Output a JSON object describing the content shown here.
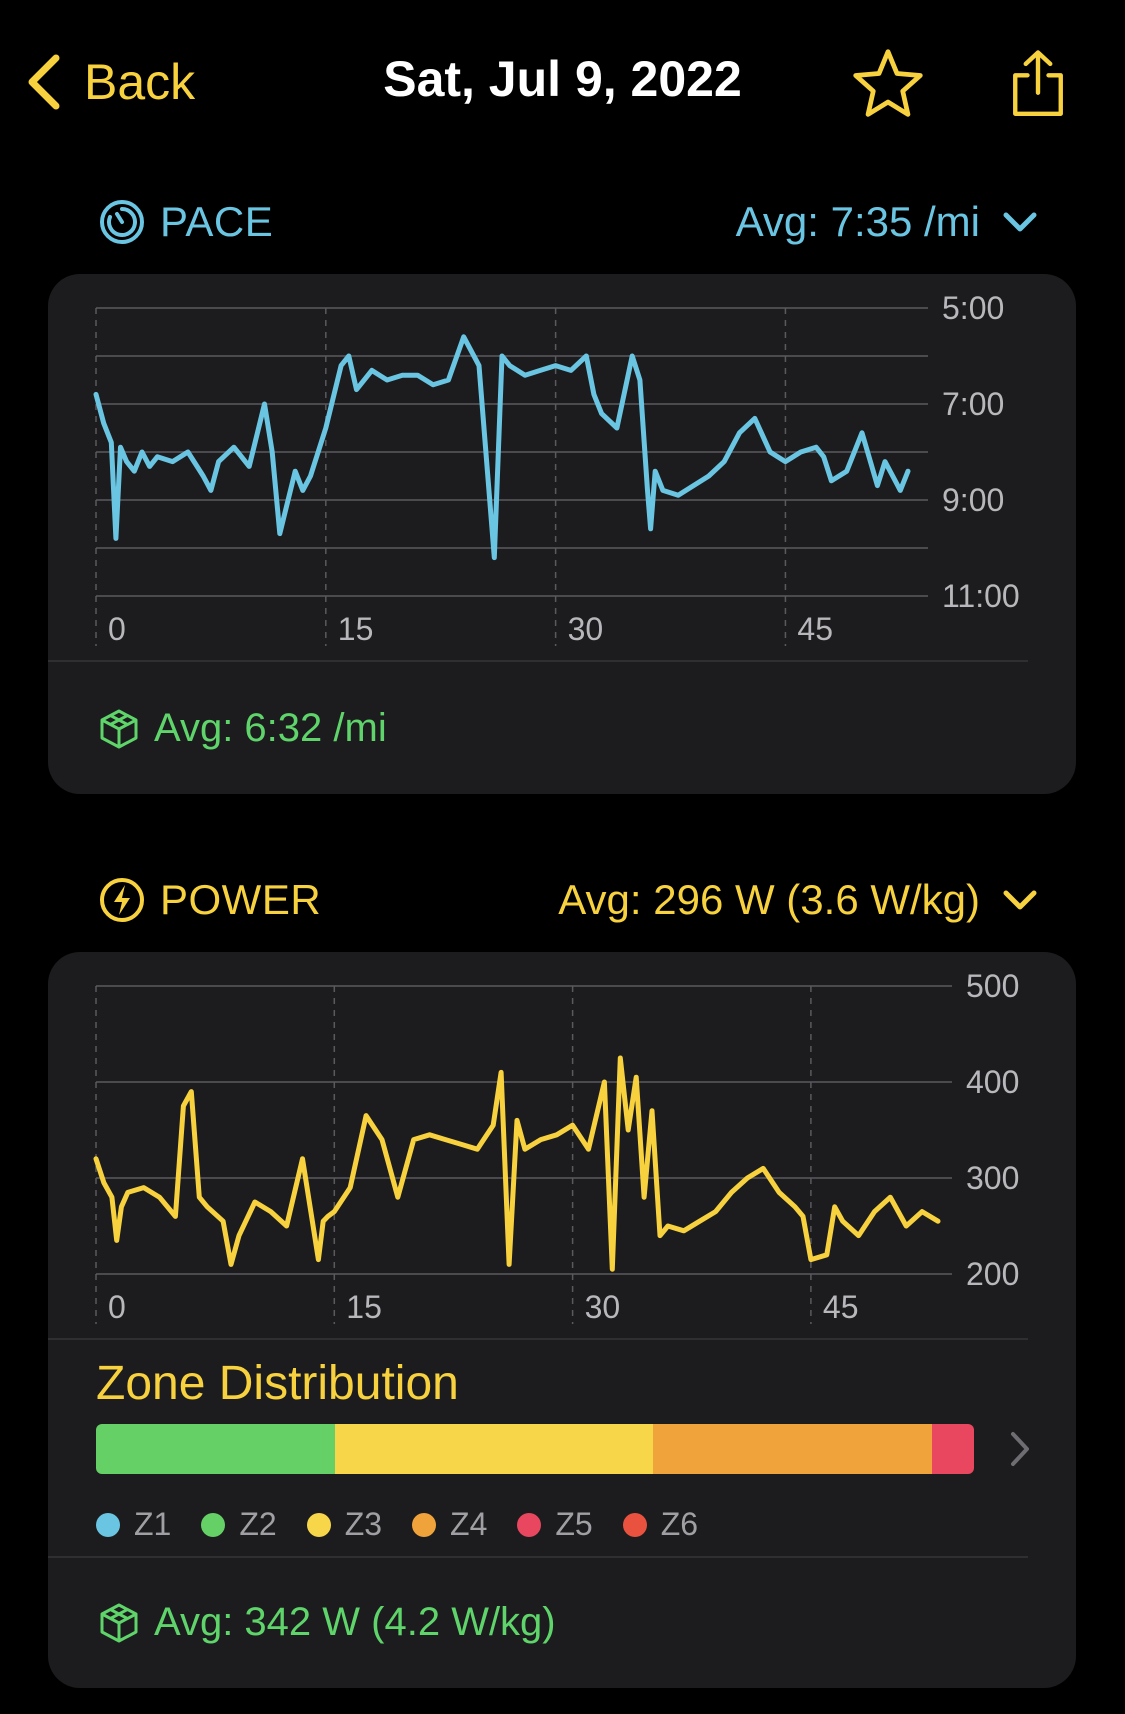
{
  "colors": {
    "accent": "#f7d23e",
    "pace": "#6ac5e2",
    "power": "#f7d23e",
    "footer_green": "#5ed46a",
    "card_bg": "#1c1c1e"
  },
  "header": {
    "back_label": "Back",
    "title": "Sat, Jul 9, 2022",
    "icons": [
      "chevron-left-icon",
      "star-icon",
      "share-icon"
    ]
  },
  "pace": {
    "label": "PACE",
    "avg_label": "Avg: 7:35 /mi",
    "footer_avg": "Avg: 6:32 /mi",
    "chart_data": {
      "type": "line",
      "y_tick_labels": [
        "5:00",
        "7:00",
        "9:00",
        "11:00"
      ],
      "x_tick_labels": [
        "0",
        "15",
        "30",
        "45"
      ],
      "y_inverted": true,
      "ylim": [
        5,
        11
      ],
      "xlim": [
        0,
        53
      ],
      "x": [
        0,
        0.5,
        1,
        1.3,
        1.6,
        2,
        2.5,
        3,
        3.5,
        4,
        5,
        6,
        7,
        7.5,
        8,
        9,
        10,
        11,
        11.5,
        12,
        13,
        13.5,
        14,
        15,
        16,
        16.5,
        17,
        18,
        19,
        20,
        21,
        22,
        23,
        24,
        25,
        26,
        26.5,
        27,
        27.5,
        28,
        29,
        30,
        31,
        32,
        32.5,
        33,
        34,
        35,
        35.5,
        36,
        36.2,
        36.5,
        37,
        38,
        39,
        40,
        41,
        42,
        43,
        44,
        45,
        46,
        47,
        47.5,
        48,
        49,
        50,
        51,
        51.5,
        52,
        52.5,
        53
      ],
      "series": [
        {
          "values": [
            6.8,
            7.4,
            7.8,
            9.8,
            7.9,
            8.2,
            8.4,
            8.0,
            8.3,
            8.1,
            8.2,
            8.0,
            8.5,
            8.8,
            8.2,
            7.9,
            8.3,
            7.0,
            8.0,
            9.7,
            8.4,
            8.8,
            8.5,
            7.5,
            6.2,
            6.0,
            6.7,
            6.3,
            6.5,
            6.4,
            6.4,
            6.6,
            6.5,
            5.6,
            6.2,
            10.2,
            6.0,
            6.2,
            6.3,
            6.4,
            6.3,
            6.2,
            6.3,
            6.0,
            6.8,
            7.2,
            7.5,
            6.0,
            6.5,
            8.8,
            9.6,
            8.4,
            8.8,
            8.9,
            8.7,
            8.5,
            8.2,
            7.6,
            7.3,
            8.0,
            8.2,
            8.0,
            7.9,
            8.1,
            8.6,
            8.4,
            7.6,
            8.7,
            8.2,
            8.5,
            8.8,
            8.4
          ]
        }
      ]
    }
  },
  "power": {
    "label": "POWER",
    "avg_label": "Avg: 296 W (3.6 W/kg)",
    "footer_avg": "Avg: 342 W (4.2 W/kg)",
    "chart_data": {
      "type": "line",
      "y_tick_labels": [
        "500",
        "400",
        "300",
        "200"
      ],
      "x_tick_labels": [
        "0",
        "15",
        "30",
        "45"
      ],
      "ylim": [
        200,
        500
      ],
      "xlim": [
        0,
        53
      ],
      "x": [
        0,
        0.5,
        1,
        1.3,
        1.6,
        2,
        3,
        4,
        5,
        5.5,
        6,
        6.5,
        7,
        8,
        8.5,
        9,
        10,
        11,
        12,
        13,
        14,
        14.3,
        14.6,
        15,
        16,
        17,
        18,
        19,
        20,
        21,
        22,
        23,
        24,
        25,
        25.5,
        26,
        26.5,
        27,
        27.5,
        28,
        29,
        30,
        31,
        32,
        32.5,
        33,
        33.5,
        34,
        34.5,
        35,
        35.5,
        36,
        37,
        38,
        39,
        40,
        41,
        42,
        43,
        44,
        44.5,
        45,
        46,
        46.5,
        47,
        48,
        49,
        50,
        51,
        52,
        53
      ],
      "series": [
        {
          "values": [
            320,
            295,
            280,
            235,
            270,
            285,
            290,
            280,
            260,
            375,
            390,
            280,
            270,
            255,
            210,
            240,
            275,
            265,
            250,
            320,
            215,
            255,
            260,
            265,
            290,
            365,
            340,
            280,
            340,
            345,
            340,
            335,
            330,
            355,
            410,
            210,
            360,
            330,
            335,
            340,
            345,
            355,
            330,
            400,
            205,
            425,
            350,
            405,
            280,
            370,
            240,
            250,
            245,
            255,
            265,
            285,
            300,
            310,
            285,
            270,
            260,
            215,
            220,
            270,
            255,
            240,
            265,
            280,
            250,
            265,
            255
          ]
        }
      ]
    }
  },
  "zone": {
    "title": "Zone Distribution",
    "segments": [
      {
        "name": "Z2",
        "fraction": 0.272,
        "color": "#64d066"
      },
      {
        "name": "Z3",
        "fraction": 0.362,
        "color": "#f7d64a"
      },
      {
        "name": "Z4",
        "fraction": 0.318,
        "color": "#f0a33a"
      },
      {
        "name": "Z5",
        "fraction": 0.048,
        "color": "#e8475f"
      }
    ],
    "legend": [
      {
        "label": "Z1",
        "color": "#6ac5e2"
      },
      {
        "label": "Z2",
        "color": "#64d066"
      },
      {
        "label": "Z3",
        "color": "#f7d64a"
      },
      {
        "label": "Z4",
        "color": "#f0a33a"
      },
      {
        "label": "Z5",
        "color": "#e8475f"
      },
      {
        "label": "Z6",
        "color": "#e8523f"
      }
    ]
  }
}
